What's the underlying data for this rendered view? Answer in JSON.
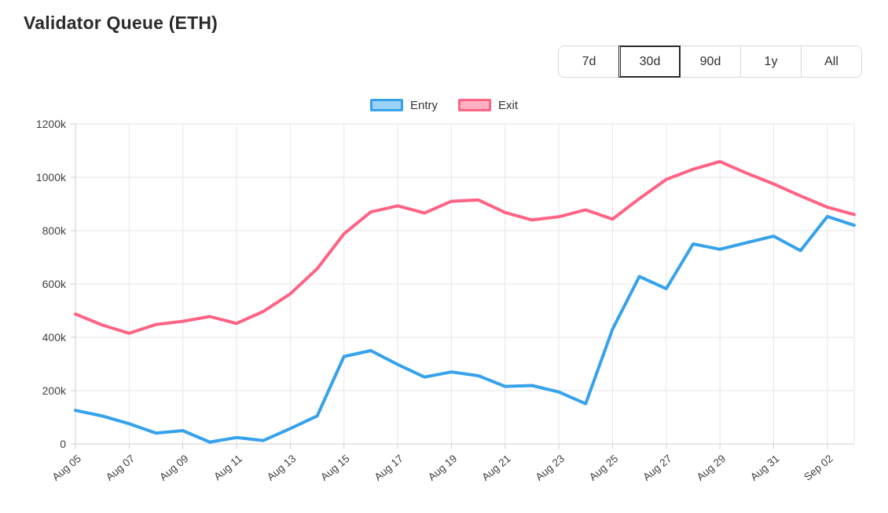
{
  "page": {
    "title": "Validator Queue (ETH)"
  },
  "range_buttons": [
    {
      "label": "7d",
      "selected": false
    },
    {
      "label": "30d",
      "selected": true
    },
    {
      "label": "90d",
      "selected": false
    },
    {
      "label": "1y",
      "selected": false
    },
    {
      "label": "All",
      "selected": false
    }
  ],
  "legend": {
    "position": "top"
  },
  "colors": {
    "entry_line": "#36A2EB",
    "entry_fill": "#9BD1F5",
    "exit_line": "#FF6384",
    "exit_fill": "#FFB1C1",
    "grid": "#e6e6e6",
    "axis_border": "#cfcfcf",
    "tick_text": "#3f3f3f"
  },
  "chart_data": {
    "type": "line",
    "title": "Validator Queue (ETH)",
    "xlabel": "",
    "ylabel": "",
    "unit": "thousands (k)",
    "grid": true,
    "legend_position": "top",
    "ylim_k": [
      0,
      1200
    ],
    "ytick_step_k": 200,
    "ytick_labels": [
      "0",
      "200k",
      "400k",
      "600k",
      "800k",
      "1000k",
      "1200k"
    ],
    "xtick_every": 2,
    "xtick_labels": [
      "Aug 05",
      "Aug 07",
      "Aug 09",
      "Aug 11",
      "Aug 13",
      "Aug 15",
      "Aug 17",
      "Aug 19",
      "Aug 21",
      "Aug 23",
      "Aug 25",
      "Aug 27",
      "Aug 29",
      "Aug 31",
      "Sep 02"
    ],
    "categories": [
      "Aug 05",
      "Aug 06",
      "Aug 07",
      "Aug 08",
      "Aug 09",
      "Aug 10",
      "Aug 11",
      "Aug 12",
      "Aug 13",
      "Aug 14",
      "Aug 15",
      "Aug 16",
      "Aug 17",
      "Aug 18",
      "Aug 19",
      "Aug 20",
      "Aug 21",
      "Aug 22",
      "Aug 23",
      "Aug 24",
      "Aug 25",
      "Aug 26",
      "Aug 27",
      "Aug 28",
      "Aug 29",
      "Aug 30",
      "Aug 31",
      "Sep 01",
      "Sep 02",
      "Sep 03"
    ],
    "series": [
      {
        "name": "Entry",
        "color": "#36A2EB",
        "legend_fill": "#9BD1F5",
        "values_k": [
          126,
          105,
          76,
          41,
          50,
          7,
          24,
          13,
          58,
          105,
          328,
          350,
          298,
          251,
          270,
          256,
          216,
          219,
          195,
          151,
          430,
          628,
          582,
          750,
          730,
          755,
          779,
          725,
          853,
          820
        ]
      },
      {
        "name": "Exit",
        "color": "#FF6384",
        "legend_fill": "#FFB1C1",
        "values_k": [
          487,
          446,
          415,
          448,
          460,
          478,
          452,
          497,
          563,
          657,
          788,
          870,
          893,
          866,
          910,
          915,
          868,
          840,
          852,
          878,
          843,
          920,
          992,
          1030,
          1059,
          1015,
          975,
          930,
          888,
          860
        ]
      }
    ]
  }
}
